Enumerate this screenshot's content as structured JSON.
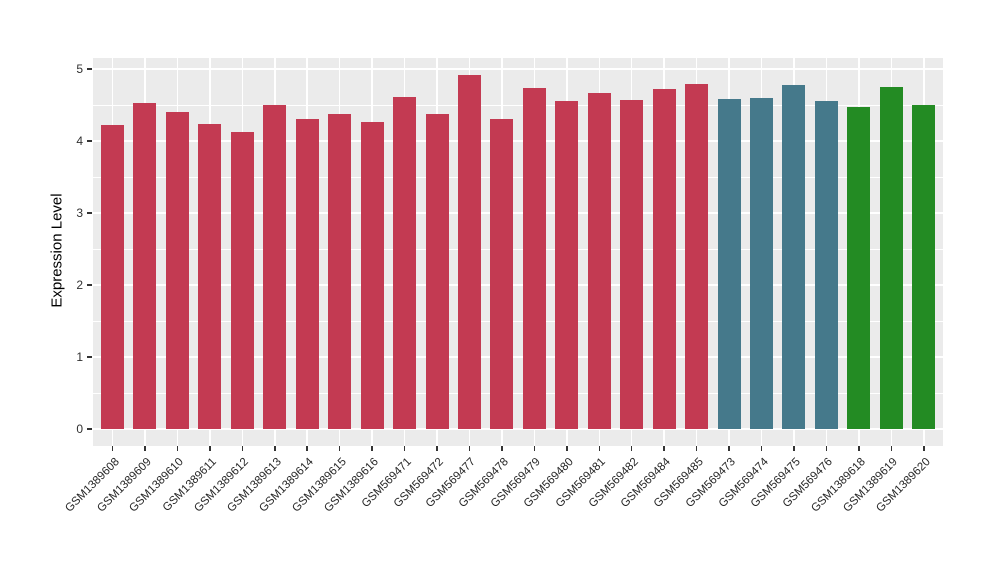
{
  "chart_data": {
    "type": "bar",
    "title": "",
    "xlabel": "",
    "ylabel": "Expression Level",
    "ylim": [
      0,
      5
    ],
    "yticks": [
      0,
      1,
      2,
      3,
      4,
      5
    ],
    "grid": true,
    "legend_position": "none",
    "panel_bg": "#EBEBEB",
    "grid_color": "#FFFFFF",
    "categories": [
      "GSM1389608",
      "GSM1389609",
      "GSM1389610",
      "GSM1389611",
      "GSM1389612",
      "GSM1389613",
      "GSM1389614",
      "GSM1389615",
      "GSM1389616",
      "GSM569471",
      "GSM569472",
      "GSM569477",
      "GSM569478",
      "GSM569479",
      "GSM569480",
      "GSM569481",
      "GSM569482",
      "GSM569484",
      "GSM569485",
      "GSM569473",
      "GSM569474",
      "GSM569475",
      "GSM569476",
      "GSM1389618",
      "GSM1389619",
      "GSM1389620"
    ],
    "values": [
      4.22,
      4.53,
      4.4,
      4.24,
      4.13,
      4.5,
      4.31,
      4.37,
      4.26,
      4.61,
      4.37,
      4.92,
      4.31,
      4.73,
      4.55,
      4.67,
      4.57,
      4.72,
      4.79,
      4.59,
      4.6,
      4.78,
      4.56,
      4.47,
      4.75,
      4.5
    ],
    "bar_colors": [
      "#C33A52",
      "#C33A52",
      "#C33A52",
      "#C33A52",
      "#C33A52",
      "#C33A52",
      "#C33A52",
      "#C33A52",
      "#C33A52",
      "#C33A52",
      "#C33A52",
      "#C33A52",
      "#C33A52",
      "#C33A52",
      "#C33A52",
      "#C33A52",
      "#C33A52",
      "#C33A52",
      "#C33A52",
      "#45798B",
      "#45798B",
      "#45798B",
      "#45798B",
      "#238B23",
      "#238B23",
      "#238B23"
    ],
    "palette": {
      "group1": "#C33A52",
      "group2": "#45798B",
      "group3": "#238B23"
    }
  }
}
